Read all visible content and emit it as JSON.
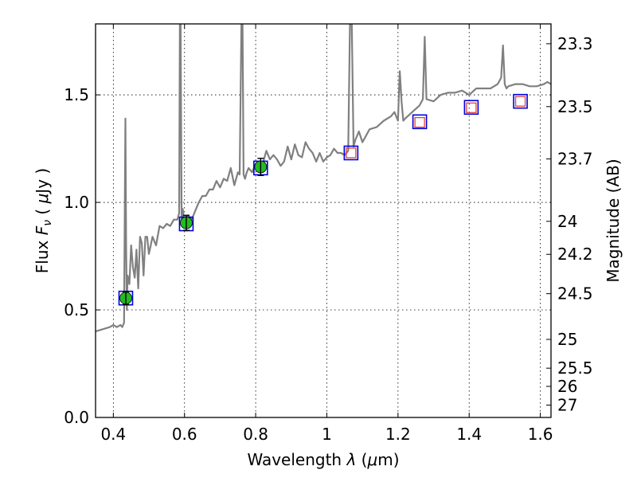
{
  "chart_data": {
    "type": "line",
    "title": "",
    "xlabel_prefix": "Wavelength  ",
    "xlabel_symbol": "λ",
    "xlabel_paren_open": " (",
    "xlabel_unit_mu": "μ",
    "xlabel_unit_rest": "m)",
    "ylabel_prefix": "Flux  ",
    "ylabel_symbol": "F",
    "ylabel_sub": "ν",
    "ylabel_rest_open": "  ( ",
    "ylabel_rest_mu": "μ",
    "ylabel_rest_close": "Jy )",
    "y2label": "Magnitude (AB)",
    "xlim": [
      0.35,
      1.63
    ],
    "ylim": [
      0.0,
      1.83
    ],
    "grid": true,
    "x_ticks": [
      {
        "value": 0.4,
        "label": "0.4"
      },
      {
        "value": 0.6,
        "label": "0.6"
      },
      {
        "value": 0.8,
        "label": "0.8"
      },
      {
        "value": 1.0,
        "label": "1"
      },
      {
        "value": 1.2,
        "label": "1.2"
      },
      {
        "value": 1.4,
        "label": "1.4"
      },
      {
        "value": 1.6,
        "label": "1.6"
      }
    ],
    "y_ticks": [
      {
        "value": 0.0,
        "label": "0.0"
      },
      {
        "value": 0.5,
        "label": "0.5"
      },
      {
        "value": 1.0,
        "label": "1.0"
      },
      {
        "value": 1.5,
        "label": "1.5"
      }
    ],
    "mag_ticks": [
      {
        "value": 23.3,
        "label": "23.3"
      },
      {
        "value": 23.5,
        "label": "23.5"
      },
      {
        "value": 23.7,
        "label": "23.7"
      },
      {
        "value": 24,
        "label": "24"
      },
      {
        "value": 24.2,
        "label": "24.2"
      },
      {
        "value": 24.5,
        "label": "24.5"
      },
      {
        "value": 25,
        "label": "25"
      },
      {
        "value": 25.5,
        "label": "25.5"
      },
      {
        "value": 26,
        "label": "26"
      },
      {
        "value": 27,
        "label": "27"
      }
    ],
    "colors": {
      "model": "#808080",
      "observed_fill": "#22bb22",
      "model_box": "#0000dd",
      "predicted_box": "#dd4444",
      "grid": "#000000"
    },
    "model_spectrum": {
      "x": [
        0.35,
        0.37,
        0.39,
        0.4,
        0.41,
        0.42,
        0.425,
        0.43,
        0.432,
        0.434,
        0.436,
        0.438,
        0.44,
        0.445,
        0.45,
        0.455,
        0.46,
        0.465,
        0.47,
        0.475,
        0.48,
        0.485,
        0.49,
        0.495,
        0.5,
        0.505,
        0.51,
        0.52,
        0.53,
        0.54,
        0.55,
        0.56,
        0.57,
        0.58,
        0.585,
        0.587,
        0.589,
        0.592,
        0.595,
        0.6,
        0.61,
        0.62,
        0.63,
        0.64,
        0.65,
        0.66,
        0.67,
        0.68,
        0.69,
        0.7,
        0.71,
        0.72,
        0.73,
        0.74,
        0.75,
        0.755,
        0.76,
        0.763,
        0.766,
        0.77,
        0.775,
        0.78,
        0.79,
        0.8,
        0.81,
        0.82,
        0.83,
        0.84,
        0.85,
        0.86,
        0.87,
        0.88,
        0.89,
        0.9,
        0.91,
        0.92,
        0.93,
        0.94,
        0.95,
        0.96,
        0.97,
        0.98,
        0.99,
        1.0,
        1.01,
        1.02,
        1.03,
        1.04,
        1.05,
        1.06,
        1.065,
        1.07,
        1.075,
        1.08,
        1.09,
        1.1,
        1.12,
        1.14,
        1.16,
        1.18,
        1.19,
        1.2,
        1.205,
        1.21,
        1.215,
        1.22,
        1.24,
        1.26,
        1.27,
        1.275,
        1.28,
        1.3,
        1.32,
        1.34,
        1.36,
        1.38,
        1.4,
        1.42,
        1.44,
        1.46,
        1.48,
        1.49,
        1.495,
        1.5,
        1.505,
        1.51,
        1.53,
        1.55,
        1.57,
        1.59,
        1.61,
        1.62,
        1.63
      ],
      "y": [
        0.4,
        0.41,
        0.42,
        0.43,
        0.42,
        0.43,
        0.42,
        0.44,
        0.9,
        1.39,
        0.8,
        0.5,
        0.66,
        0.62,
        0.8,
        0.7,
        0.65,
        0.78,
        0.6,
        0.84,
        0.81,
        0.66,
        0.84,
        0.84,
        0.76,
        0.8,
        0.84,
        0.8,
        0.89,
        0.88,
        0.9,
        0.89,
        0.92,
        0.92,
        0.95,
        1.83,
        1.83,
        0.92,
        0.97,
        0.9,
        0.94,
        0.92,
        0.96,
        1.0,
        1.03,
        1.03,
        1.06,
        1.06,
        1.1,
        1.07,
        1.11,
        1.1,
        1.16,
        1.08,
        1.14,
        1.13,
        1.83,
        1.83,
        1.13,
        1.11,
        1.14,
        1.16,
        1.14,
        1.18,
        1.17,
        1.18,
        1.24,
        1.2,
        1.22,
        1.2,
        1.17,
        1.19,
        1.26,
        1.2,
        1.27,
        1.22,
        1.21,
        1.28,
        1.25,
        1.23,
        1.19,
        1.23,
        1.19,
        1.21,
        1.22,
        1.25,
        1.23,
        1.23,
        1.22,
        1.24,
        1.83,
        1.83,
        1.26,
        1.29,
        1.33,
        1.28,
        1.34,
        1.35,
        1.38,
        1.4,
        1.42,
        1.38,
        1.61,
        1.47,
        1.38,
        1.39,
        1.42,
        1.45,
        1.48,
        1.77,
        1.48,
        1.47,
        1.5,
        1.51,
        1.51,
        1.52,
        1.5,
        1.53,
        1.53,
        1.53,
        1.55,
        1.58,
        1.73,
        1.55,
        1.53,
        1.54,
        1.55,
        1.55,
        1.54,
        1.54,
        1.55,
        1.56,
        1.55
      ]
    },
    "observed_points": [
      {
        "x": 0.435,
        "y": 0.555,
        "err": 0.03
      },
      {
        "x": 0.605,
        "y": 0.905,
        "err": 0.035
      },
      {
        "x": 0.814,
        "y": 1.165,
        "err": 0.04
      }
    ],
    "model_photometry": [
      {
        "x": 0.435,
        "y": 0.555
      },
      {
        "x": 0.605,
        "y": 0.9
      },
      {
        "x": 0.814,
        "y": 1.16
      },
      {
        "x": 1.068,
        "y": 1.23
      },
      {
        "x": 1.261,
        "y": 1.375
      },
      {
        "x": 1.406,
        "y": 1.442
      },
      {
        "x": 1.544,
        "y": 1.47
      }
    ],
    "predicted_points": [
      {
        "x": 1.068,
        "y": 1.23
      },
      {
        "x": 1.261,
        "y": 1.372
      },
      {
        "x": 1.406,
        "y": 1.44
      },
      {
        "x": 1.544,
        "y": 1.47
      }
    ]
  }
}
